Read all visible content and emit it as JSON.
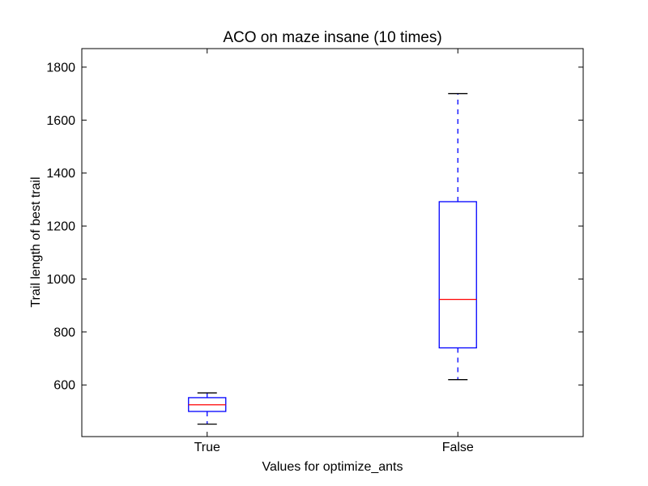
{
  "chart_data": {
    "type": "box",
    "title": "ACO on maze insane (10 times)",
    "xlabel": "Values for optimize_ants",
    "ylabel": "Trail length of best trail",
    "ylim": [
      405,
      1870
    ],
    "yticks": [
      600,
      800,
      1000,
      1200,
      1400,
      1600,
      1800
    ],
    "categories": [
      "True",
      "False"
    ],
    "boxes": [
      {
        "category": "True",
        "whisker_low": 452,
        "q1": 500,
        "median": 525,
        "q3": 552,
        "whisker_high": 570
      },
      {
        "category": "False",
        "whisker_low": 620,
        "q1": 740,
        "median": 923,
        "q3": 1292,
        "whisker_high": 1700
      }
    ],
    "grid": false,
    "colors": {
      "box": "#0000ff",
      "median": "#ff0000",
      "whisker": "#0000ff",
      "cap": "#000000"
    }
  }
}
